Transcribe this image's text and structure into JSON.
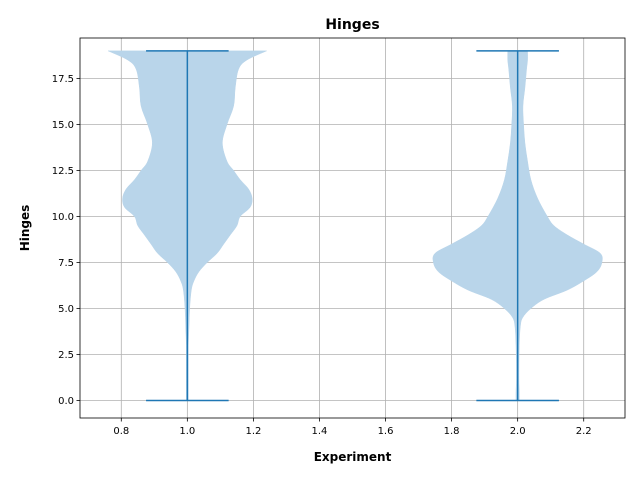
{
  "chart_data": {
    "type": "violin",
    "title": "Hinges",
    "xlabel": "Experiment",
    "ylabel": "Hinges",
    "xlim": [
      0.675,
      2.325
    ],
    "ylim": [
      -0.95,
      19.7
    ],
    "x_ticks": [
      0.8,
      1.0,
      1.2,
      1.4,
      1.6,
      1.8,
      2.0,
      2.2
    ],
    "x_tick_labels": [
      "0.8",
      "1.0",
      "1.2",
      "1.4",
      "1.6",
      "1.8",
      "2.0",
      "2.2"
    ],
    "y_ticks": [
      0,
      2.5,
      5,
      7.5,
      10,
      12.5,
      15,
      17.5
    ],
    "y_tick_labels": [
      "0.0",
      "2.5",
      "5.0",
      "7.5",
      "10.0",
      "12.5",
      "15.0",
      "17.5"
    ],
    "grid": true,
    "colors": {
      "body": "#b9d5ea",
      "line": "#1f77b4"
    },
    "violins": [
      {
        "position": 1.0,
        "min": 0,
        "max": 19,
        "cap_half_width": 0.125,
        "profile": [
          [
            0,
            0.003
          ],
          [
            0.5,
            0.003
          ],
          [
            1.0,
            0.003
          ],
          [
            2.0,
            0.003
          ],
          [
            3.0,
            0.003
          ],
          [
            4.0,
            0.005
          ],
          [
            5.0,
            0.007
          ],
          [
            6.0,
            0.012
          ],
          [
            6.5,
            0.02
          ],
          [
            7.0,
            0.035
          ],
          [
            7.5,
            0.06
          ],
          [
            8.0,
            0.09
          ],
          [
            8.5,
            0.11
          ],
          [
            9.0,
            0.13
          ],
          [
            9.5,
            0.15
          ],
          [
            10.0,
            0.16
          ],
          [
            10.5,
            0.19
          ],
          [
            11.0,
            0.196
          ],
          [
            11.5,
            0.185
          ],
          [
            12.0,
            0.16
          ],
          [
            12.5,
            0.14
          ],
          [
            13.0,
            0.12
          ],
          [
            14.0,
            0.106
          ],
          [
            15.0,
            0.12
          ],
          [
            16.0,
            0.14
          ],
          [
            17.0,
            0.145
          ],
          [
            18.0,
            0.155
          ],
          [
            18.5,
            0.18
          ],
          [
            19.0,
            0.24
          ]
        ]
      },
      {
        "position": 2.0,
        "min": 0,
        "max": 19,
        "cap_half_width": 0.125,
        "profile": [
          [
            0,
            0.005
          ],
          [
            0.5,
            0.005
          ],
          [
            1.0,
            0.004
          ],
          [
            2.0,
            0.004
          ],
          [
            3.0,
            0.005
          ],
          [
            4.0,
            0.008
          ],
          [
            4.5,
            0.015
          ],
          [
            5.0,
            0.04
          ],
          [
            5.5,
            0.08
          ],
          [
            6.0,
            0.15
          ],
          [
            6.5,
            0.2
          ],
          [
            7.0,
            0.24
          ],
          [
            7.5,
            0.255
          ],
          [
            8.0,
            0.25
          ],
          [
            8.5,
            0.2
          ],
          [
            9.0,
            0.15
          ],
          [
            9.5,
            0.11
          ],
          [
            10.0,
            0.09
          ],
          [
            11.0,
            0.06
          ],
          [
            12.0,
            0.04
          ],
          [
            13.0,
            0.03
          ],
          [
            14.0,
            0.022
          ],
          [
            15.0,
            0.018
          ],
          [
            16.0,
            0.016
          ],
          [
            17.0,
            0.022
          ],
          [
            18.0,
            0.027
          ],
          [
            18.5,
            0.03
          ],
          [
            19.0,
            0.03
          ]
        ]
      }
    ]
  }
}
